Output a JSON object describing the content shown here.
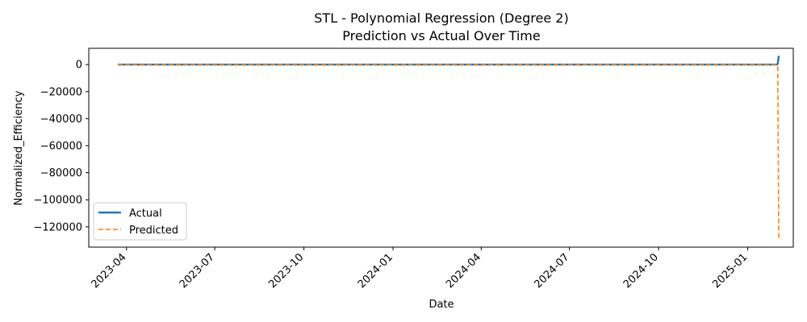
{
  "chart_data": {
    "type": "line",
    "title": "STL - Polynomial Regression (Degree 2)",
    "subtitle": "Prediction vs Actual Over Time",
    "xlabel": "Date",
    "ylabel": "Normalized_Efficiency",
    "xlim": [
      "2023-02-21",
      "2025-02-17"
    ],
    "ylim": [
      -135000,
      12000
    ],
    "x_ticks": [
      "2023-04",
      "2023-07",
      "2023-10",
      "2024-01",
      "2024-04",
      "2024-07",
      "2024-10",
      "2025-01"
    ],
    "y_ticks": [
      0,
      -20000,
      -40000,
      -60000,
      -80000,
      -100000,
      -120000
    ],
    "y_tick_labels": [
      "0",
      "−20000",
      "−40000",
      "−60000",
      "−80000",
      "−100000",
      "−120000"
    ],
    "grid": false,
    "legend_position": "lower-left",
    "series": [
      {
        "name": "Actual",
        "color": "#1f77b4",
        "style": "solid",
        "points": [
          {
            "x": "2023-03-23",
            "y": 0
          },
          {
            "x": "2025-01-31",
            "y": 0
          },
          {
            "x": "2025-02-01",
            "y": 500
          },
          {
            "x": "2025-02-02",
            "y": 6500
          }
        ]
      },
      {
        "name": "Predicted",
        "color": "#ff7f0e",
        "style": "dashed",
        "points": [
          {
            "x": "2023-03-23",
            "y": 0
          },
          {
            "x": "2025-01-31",
            "y": 0
          },
          {
            "x": "2025-02-01",
            "y": -2000
          },
          {
            "x": "2025-02-02",
            "y": -128500
          }
        ]
      }
    ]
  }
}
